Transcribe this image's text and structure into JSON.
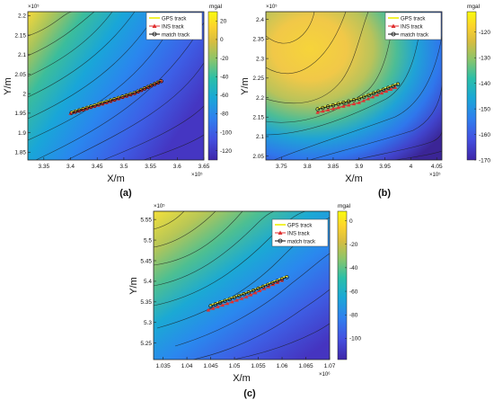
{
  "figure": {
    "panels": [
      {
        "id": "a",
        "panel_label": "(a)",
        "xlabel": "X/m",
        "ylabel": "Y/m",
        "x_exponent_label": "×10⁵",
        "y_exponent_label": "×10⁵",
        "xticks": [
          3.35,
          3.4,
          3.45,
          3.5,
          3.55,
          3.6,
          3.65
        ],
        "yticks": [
          1.85,
          1.9,
          1.95,
          2.0,
          2.05,
          2.1,
          2.15,
          2.2
        ],
        "colorbar": {
          "unit": "mgal",
          "ticks": [
            20,
            0,
            -20,
            -40,
            -60,
            -80,
            -100,
            -120
          ],
          "range": [
            -130,
            30
          ]
        },
        "legend": [
          "GPS track",
          "INS track",
          "match track"
        ]
      },
      {
        "id": "b",
        "panel_label": "(b)",
        "xlabel": "X/m",
        "ylabel": "Y/m",
        "x_exponent_label": "×10⁵",
        "y_exponent_label": "×10⁵",
        "xticks": [
          3.75,
          3.8,
          3.85,
          3.9,
          3.95,
          4.0,
          4.05
        ],
        "yticks": [
          2.05,
          2.1,
          2.15,
          2.2,
          2.25,
          2.3,
          2.35,
          2.4
        ],
        "colorbar": {
          "unit": "mgal",
          "ticks": [
            -120,
            -130,
            -140,
            -150,
            -160,
            -170
          ],
          "range": [
            -170,
            -112
          ]
        },
        "legend": [
          "GPS track",
          "INS track",
          "match track"
        ]
      },
      {
        "id": "c",
        "panel_label": "(c)",
        "xlabel": "X/m",
        "ylabel": "Y/m",
        "x_exponent_label": "×10⁶",
        "y_exponent_label": "×10⁵",
        "xticks": [
          1.035,
          1.04,
          1.045,
          1.05,
          1.055,
          1.06,
          1.065,
          1.07
        ],
        "yticks": [
          5.25,
          5.3,
          5.35,
          5.4,
          5.45,
          5.5,
          5.55
        ],
        "colorbar": {
          "unit": "mgal",
          "ticks": [
            0,
            -20,
            -40,
            -60,
            -80,
            -100
          ],
          "range": [
            -118,
            8
          ]
        },
        "legend": [
          "GPS track",
          "INS track",
          "match track"
        ]
      }
    ],
    "colors": {
      "gps": "#f2f236",
      "ins": "#e03030",
      "match": "#111111",
      "colormap": [
        "#3e26a8",
        "#4450e0",
        "#2f7fee",
        "#1aa8d6",
        "#2bbfa8",
        "#8cc56a",
        "#d8bd40",
        "#fcd32d",
        "#f9fb0e"
      ]
    }
  },
  "chart_data": [
    {
      "type": "heatmap",
      "panel": "a",
      "xlabel": "X/m",
      "ylabel": "Y/m",
      "xlim": [
        332000,
        365000
      ],
      "ylim": [
        183000,
        221000
      ],
      "colorbar_label": "mgal",
      "clim": [
        -130,
        30
      ],
      "series": [
        {
          "name": "GPS track",
          "x": [
            340200,
            346000,
            352000,
            357000
          ],
          "y": [
            195300,
            197800,
            200300,
            203400
          ]
        },
        {
          "name": "INS track",
          "x": [
            340000,
            346000,
            352000,
            357000
          ],
          "y": [
            194900,
            197300,
            200000,
            203200
          ]
        },
        {
          "name": "match track",
          "x": [
            340200,
            346000,
            352000,
            357000
          ],
          "y": [
            195100,
            197600,
            200200,
            203200
          ]
        }
      ]
    },
    {
      "type": "heatmap",
      "panel": "b",
      "xlabel": "X/m",
      "ylabel": "Y/m",
      "xlim": [
        372000,
        406000
      ],
      "ylim": [
        204000,
        242000
      ],
      "colorbar_label": "mgal",
      "clim": [
        -170,
        -112
      ],
      "series": [
        {
          "name": "GPS track",
          "x": [
            382000,
            390000,
            397500
          ],
          "y": [
            217200,
            219800,
            223600
          ]
        },
        {
          "name": "INS track",
          "x": [
            382000,
            390000,
            397000
          ],
          "y": [
            216200,
            218700,
            222600
          ]
        },
        {
          "name": "match track",
          "x": [
            382000,
            390000,
            397500
          ],
          "y": [
            217000,
            219700,
            223400
          ]
        }
      ]
    },
    {
      "type": "heatmap",
      "panel": "c",
      "xlabel": "X/m",
      "ylabel": "Y/m",
      "xlim": [
        1033000,
        1070000
      ],
      "ylim": [
        521000,
        557000
      ],
      "colorbar_label": "mgal",
      "clim": [
        -118,
        8
      ],
      "series": [
        {
          "name": "GPS track",
          "x": [
            1045000,
            1053000,
            1061000
          ],
          "y": [
            534200,
            537400,
            541200
          ]
        },
        {
          "name": "INS track",
          "x": [
            1044500,
            1052500,
            1060000
          ],
          "y": [
            533000,
            536200,
            540200
          ]
        },
        {
          "name": "match track",
          "x": [
            1045000,
            1053000,
            1061000
          ],
          "y": [
            534000,
            537300,
            541000
          ]
        }
      ]
    }
  ]
}
